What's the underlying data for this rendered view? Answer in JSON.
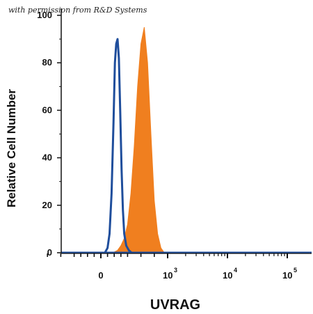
{
  "watermark": "with permission from R&D Systems",
  "chart_data": {
    "type": "area",
    "xlabel": "UVRAG",
    "ylabel": "Relative Cell Number",
    "xscale": "biexponential",
    "ylim": [
      0,
      100
    ],
    "yticks": [
      0,
      20,
      40,
      60,
      80,
      100
    ],
    "xticks": [
      {
        "label": "0",
        "base": "0",
        "exp": ""
      },
      {
        "label": "10^3",
        "base": "10",
        "exp": "3"
      },
      {
        "label": "10^4",
        "base": "10",
        "exp": "4"
      },
      {
        "label": "10^5",
        "base": "10",
        "exp": "5"
      }
    ],
    "series": [
      {
        "color": "#f07f1f",
        "style": "filled",
        "x": [
          180,
          250,
          300,
          350,
          400,
          450,
          500,
          550,
          600,
          650,
          700,
          750,
          800,
          850,
          900,
          950
        ],
        "y": [
          0,
          1,
          3,
          6,
          12,
          25,
          45,
          70,
          88,
          95,
          80,
          50,
          22,
          8,
          2,
          0
        ]
      },
      {
        "color": "#1f4e9c",
        "style": "line",
        "x": [
          60,
          100,
          130,
          160,
          190,
          210,
          230,
          250,
          270,
          290,
          310,
          330,
          350,
          380,
          420,
          460
        ],
        "y": [
          0,
          2,
          8,
          25,
          55,
          80,
          88,
          90,
          82,
          60,
          35,
          18,
          8,
          3,
          1,
          0
        ]
      }
    ]
  }
}
